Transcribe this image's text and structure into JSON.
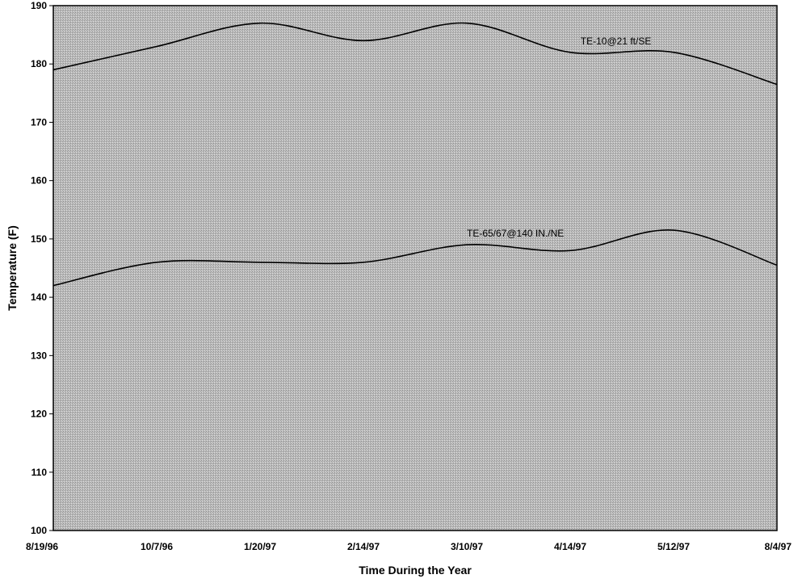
{
  "chart_data": {
    "type": "line",
    "title": "",
    "xlabel": "Time During the Year",
    "ylabel": "Temperature (F)",
    "ylim": [
      100,
      190
    ],
    "y_ticks": [
      100,
      110,
      120,
      130,
      140,
      150,
      160,
      170,
      180,
      190
    ],
    "categories": [
      "8/19/96",
      "10/7/96",
      "1/20/97",
      "2/14/97",
      "3/10/97",
      "4/14/97",
      "5/12/97",
      "8/4/97"
    ],
    "grid": false,
    "legend": "none (series labeled directly on the lines)",
    "plot_background": "#b4b4b4",
    "line_color": "#000000",
    "series": [
      {
        "name": "TE-10@21 ft/SE",
        "values": [
          179,
          183,
          187,
          184,
          187,
          182,
          182,
          176.5
        ]
      },
      {
        "name": "TE-65/67@140 IN./NE",
        "values": [
          142,
          146,
          146,
          146,
          149,
          148,
          151.5,
          145.5
        ]
      }
    ]
  }
}
